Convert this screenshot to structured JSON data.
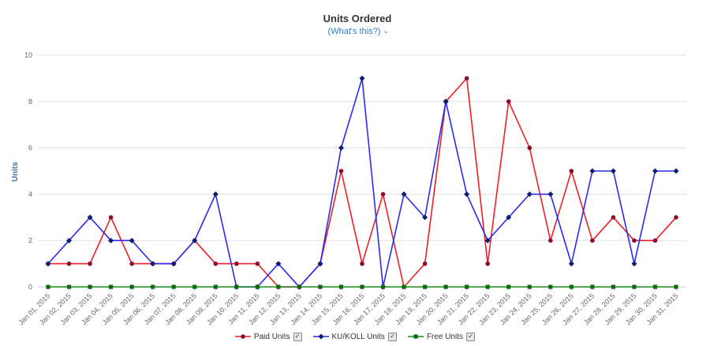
{
  "chart_data": {
    "type": "line",
    "title": "Units Ordered",
    "subtitle": "(What's this?)",
    "ylabel": "Units",
    "xlabel": "",
    "ylim": [
      0,
      10
    ],
    "yticks": [
      0,
      2,
      4,
      6,
      8,
      10
    ],
    "grid": true,
    "legend_position": "bottom",
    "categories": [
      "Jan 01, 2015",
      "Jan 02, 2015",
      "Jan 03, 2015",
      "Jan 04, 2015",
      "Jan 05, 2015",
      "Jan 06, 2015",
      "Jan 07, 2015",
      "Jan 08, 2015",
      "Jan 09, 2015",
      "Jan 10, 2015",
      "Jan 11, 2015",
      "Jan 12, 2015",
      "Jan 13, 2015",
      "Jan 14, 2015",
      "Jan 15, 2015",
      "Jan 16, 2015",
      "Jan 17, 2015",
      "Jan 18, 2015",
      "Jan 19, 2015",
      "Jan 20, 2015",
      "Jan 21, 2015",
      "Jan 22, 2015",
      "Jan 23, 2015",
      "Jan 24, 2015",
      "Jan 25, 2015",
      "Jan 26, 2015",
      "Jan 27, 2015",
      "Jan 28, 2015",
      "Jan 29, 2015",
      "Jan 30, 2015",
      "Jan 31, 2015"
    ],
    "series": [
      {
        "name": "Paid Units",
        "color": "#ee1f25",
        "marker_color": "#8b0d2d",
        "marker": "circle",
        "values": [
          1,
          1,
          1,
          3,
          1,
          1,
          1,
          2,
          1,
          1,
          1,
          0,
          0,
          1,
          5,
          1,
          4,
          0,
          1,
          8,
          9,
          1,
          8,
          6,
          2,
          5,
          2,
          3,
          2,
          2,
          3
        ]
      },
      {
        "name": "KU/KOLL Units",
        "color": "#2a2af0",
        "marker_color": "#0b1d6e",
        "marker": "diamond",
        "values": [
          1,
          2,
          3,
          2,
          2,
          1,
          1,
          2,
          4,
          0,
          0,
          1,
          0,
          1,
          6,
          9,
          0,
          4,
          3,
          8,
          4,
          2,
          3,
          4,
          4,
          1,
          5,
          5,
          1,
          5,
          5
        ]
      },
      {
        "name": "Free Units",
        "color": "#1a8c1a",
        "marker_color": "#0b6b0b",
        "marker": "square",
        "values": [
          0,
          0,
          0,
          0,
          0,
          0,
          0,
          0,
          0,
          0,
          0,
          0,
          0,
          0,
          0,
          0,
          0,
          0,
          0,
          0,
          0,
          0,
          0,
          0,
          0,
          0,
          0,
          0,
          0,
          0,
          0
        ]
      }
    ]
  },
  "chevron": "⌄",
  "check": "✓"
}
